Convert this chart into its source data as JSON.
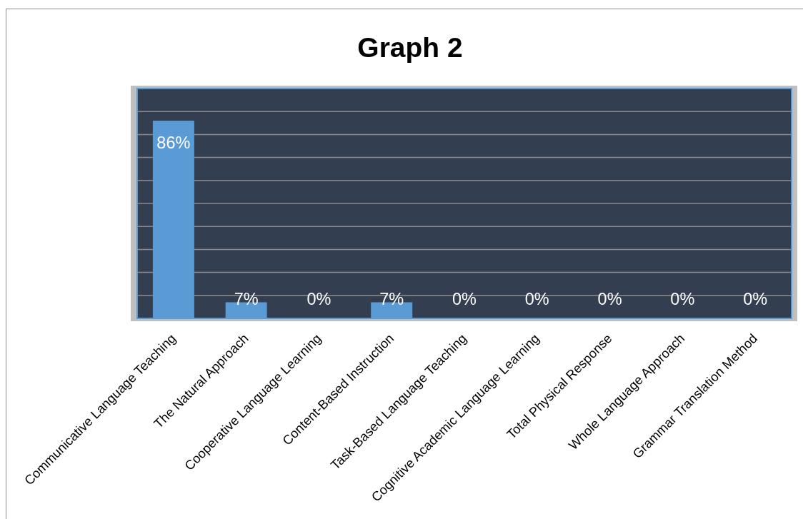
{
  "chart_data": {
    "type": "bar",
    "title": "Graph 2",
    "categories": [
      "Communicative Language Teaching",
      "The Natural Approach",
      "Cooperative Language Learning",
      "Content-Based Instruction",
      "Task-Based Language Teaching",
      "Cognitive Academic Language Learning",
      "Total Physical Response",
      "Whole Language Approach",
      "Grammar Translation Method"
    ],
    "values": [
      86,
      7,
      0,
      7,
      0,
      0,
      0,
      0,
      0
    ],
    "color": "#5b9bd5",
    "value_labels": [
      "86%",
      "7%",
      "0%",
      "7%",
      "0%",
      "0%",
      "0%",
      "0%",
      "0%"
    ],
    "ylim": [
      0,
      100
    ],
    "yticks": [
      0,
      10,
      20,
      30,
      40,
      50,
      60,
      70,
      80,
      90,
      100
    ],
    "grid": "y",
    "tick_labels": "x"
  }
}
